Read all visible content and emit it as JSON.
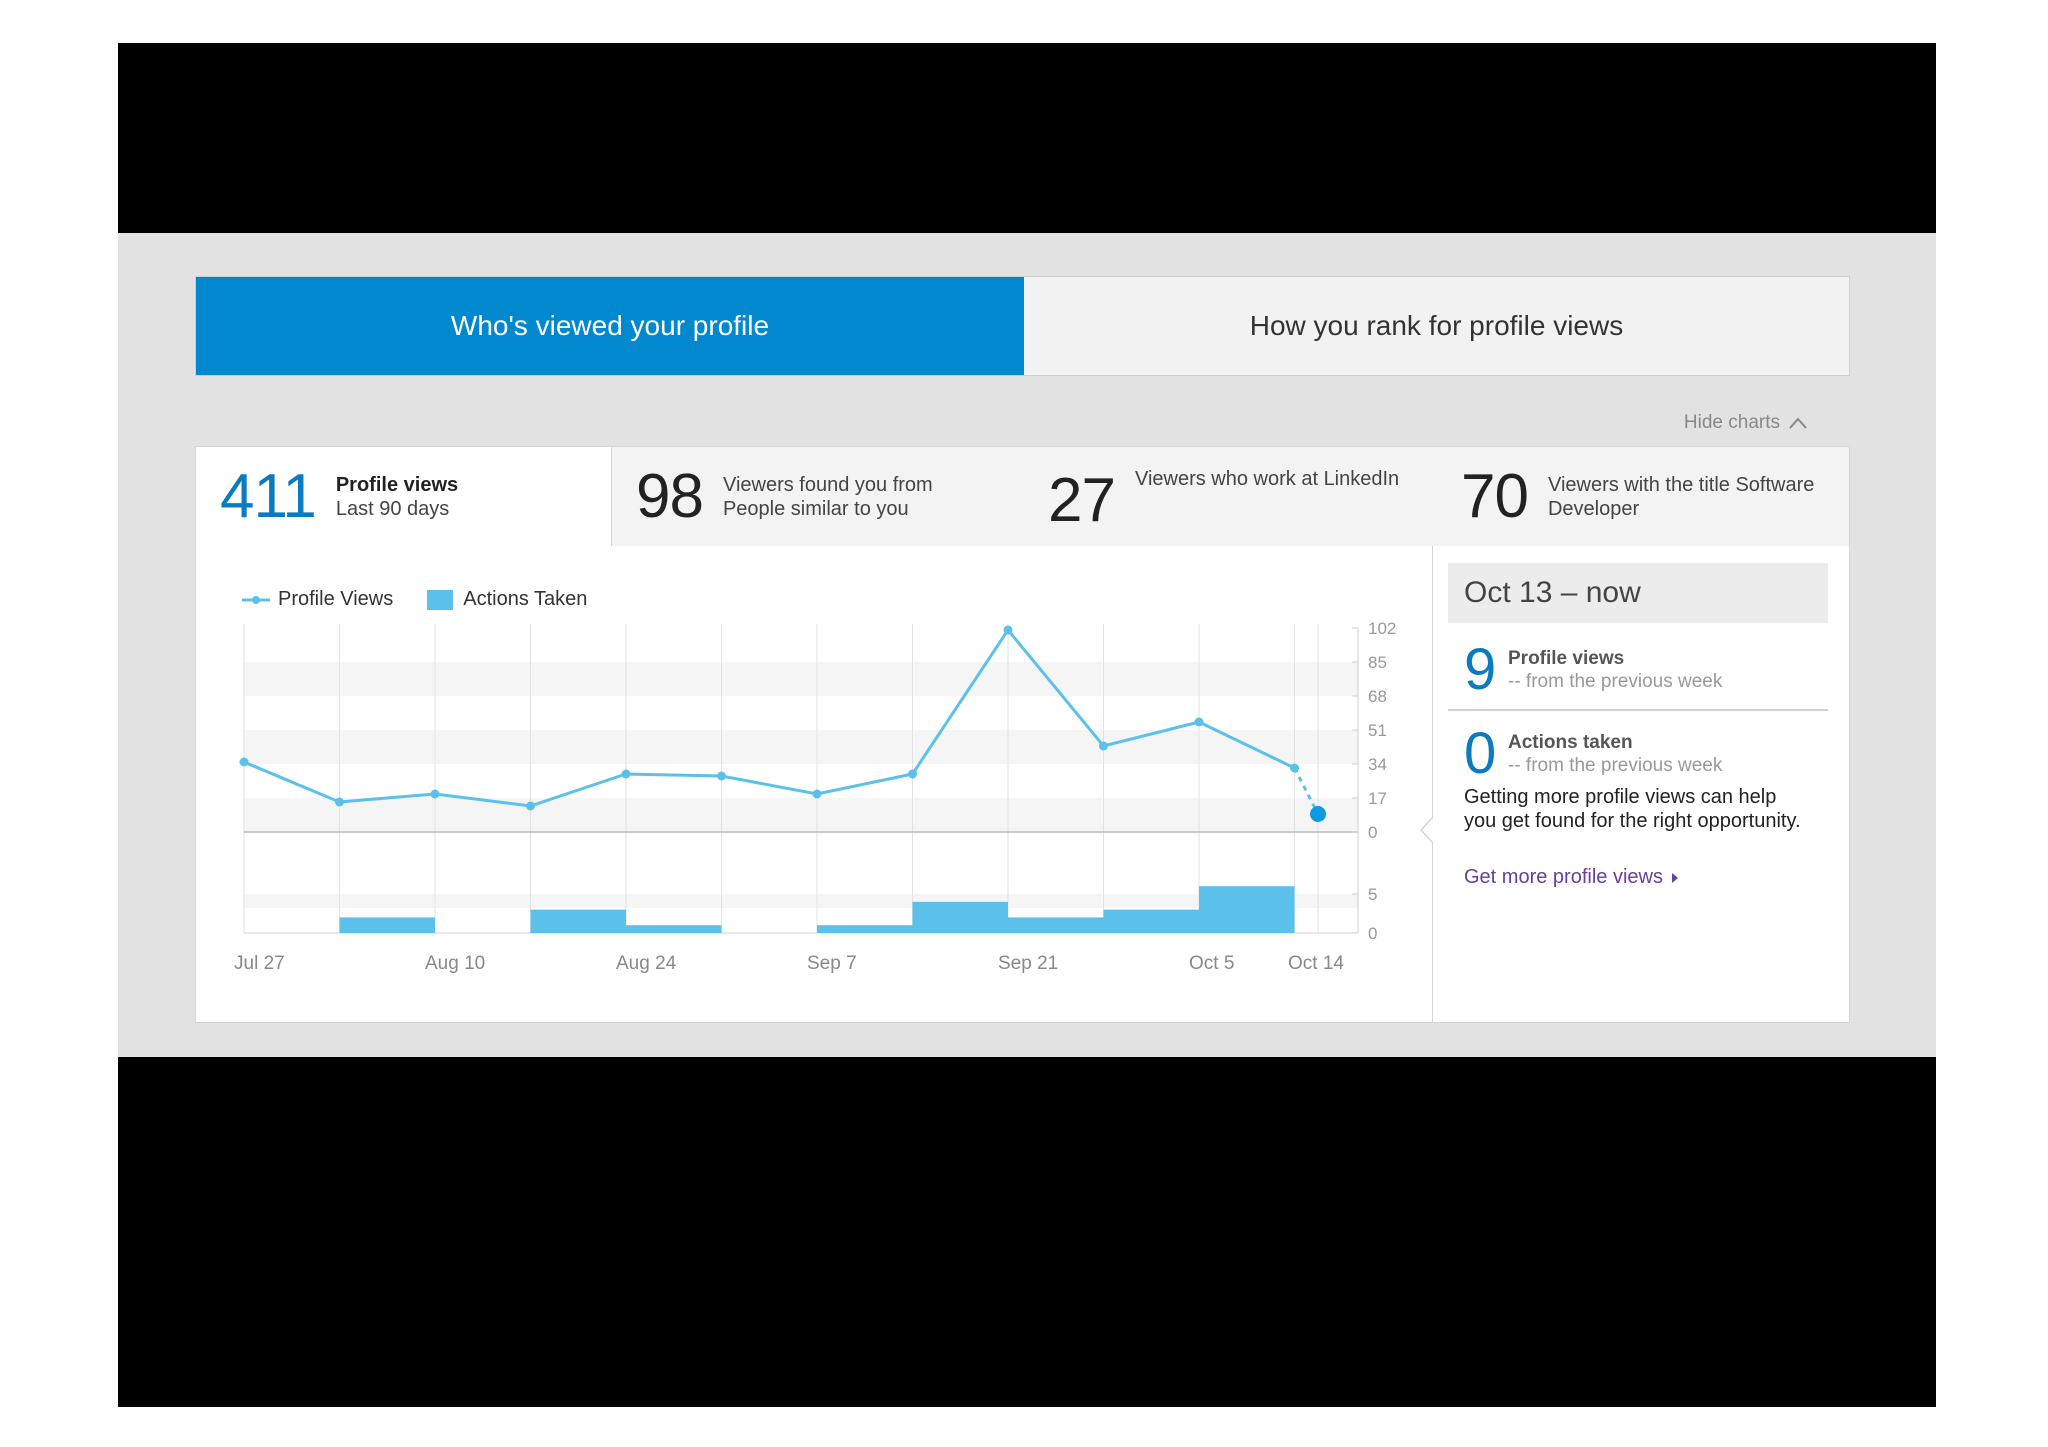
{
  "tabs": {
    "active_label": "Who's viewed your profile",
    "inactive_label": "How you rank for profile views"
  },
  "hide_charts": {
    "label": "Hide charts"
  },
  "stats": [
    {
      "value": "411",
      "title": "Profile views",
      "subtitle": "Last 90 days"
    },
    {
      "value": "98",
      "line1": "Viewers found you from",
      "line2": "People similar to you"
    },
    {
      "value": "27",
      "line1": "Viewers who work at LinkedIn",
      "line2": ""
    },
    {
      "value": "70",
      "line1": "Viewers with the title Software",
      "line2": "Developer"
    }
  ],
  "side": {
    "header": "Oct 13 – now",
    "profile_views": {
      "value": "9",
      "title": "Profile views",
      "sub": "-- from the previous week"
    },
    "actions_taken": {
      "value": "0",
      "title": "Actions taken",
      "sub": "-- from the previous week"
    },
    "message": "Getting more profile views can help you get found for the right opportunity.",
    "link": "Get more profile views"
  },
  "colors": {
    "accent": "#0288cf",
    "line": "#5bc1ea",
    "bar": "#5bc1ea",
    "link": "#6a3d9a"
  },
  "chart_data": {
    "type": "line",
    "series": [
      {
        "name": "Profile Views",
        "type": "line",
        "values": [
          35,
          15,
          19,
          13,
          29,
          28,
          19,
          29,
          101,
          43,
          55,
          32,
          9
        ],
        "last_point_projected": true
      },
      {
        "name": "Actions Taken",
        "type": "bar",
        "values": [
          0,
          2,
          0,
          3,
          1,
          0,
          1,
          4,
          2,
          3,
          6,
          0
        ]
      }
    ],
    "x_tick_labels": [
      "Jul 27",
      "Aug 10",
      "Aug 24",
      "Sep 7",
      "Sep 21",
      "Oct 5",
      "Oct 14"
    ],
    "y_ticks_top": [
      102,
      85,
      68,
      51,
      34,
      17,
      0
    ],
    "y_ticks_bottom": [
      5,
      0
    ],
    "ylim_top": [
      0,
      102
    ],
    "ylim_bottom": [
      0,
      6
    ],
    "legend_position": "top-left",
    "grid": true
  }
}
